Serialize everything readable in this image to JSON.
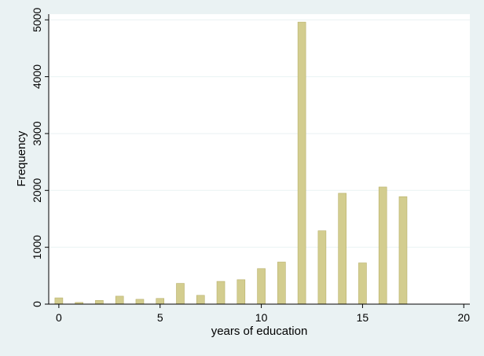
{
  "colors": {
    "background": "#eaf2f3",
    "plot_background": "#ffffff",
    "bar_fill": "#d3cd8f",
    "bar_stroke": "#b8b06a",
    "gridline": "#eaf2f3",
    "axis": "#000000"
  },
  "chart_data": {
    "type": "bar",
    "title": "",
    "xlabel": "years of education",
    "ylabel": "Frequency",
    "xlim": [
      -0.5,
      20.3
    ],
    "ylim": [
      0,
      5100
    ],
    "xticks": [
      0,
      5,
      10,
      15,
      20
    ],
    "yticks": [
      0,
      1000,
      2000,
      3000,
      4000,
      5000
    ],
    "grid": true,
    "legend": "none",
    "x": [
      0,
      1,
      2,
      3,
      4,
      5,
      6,
      7,
      8,
      9,
      10,
      11,
      12,
      13,
      14,
      15,
      16,
      17
    ],
    "values": [
      110,
      30,
      65,
      140,
      85,
      100,
      365,
      155,
      400,
      430,
      625,
      740,
      4960,
      1290,
      1950,
      725,
      2060,
      1890
    ]
  }
}
